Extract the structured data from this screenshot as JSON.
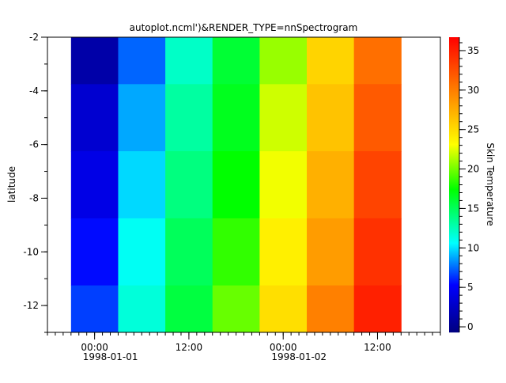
{
  "chart_data": {
    "type": "heatmap",
    "title": "autoplot.ncml')&RENDER_TYPE=nnSpectrogram",
    "xlabel": "",
    "ylabel": "latitude",
    "zlabel": "Skin Temperature",
    "x": [
      "1998-01-01T00:00",
      "1998-01-01T06:00",
      "1998-01-01T12:00",
      "1998-01-01T18:00",
      "1998-01-02T00:00",
      "1998-01-02T06:00",
      "1998-01-02T12:00"
    ],
    "y": [
      -2.5,
      -5,
      -7.5,
      -10,
      -12.5
    ],
    "z": [
      [
        1.2,
        3.1,
        4.1,
        5.5,
        6.6
      ],
      [
        7.4,
        8.8,
        9.8,
        10.9,
        11.6
      ],
      [
        12.1,
        13.1,
        14.0,
        15.0,
        15.7
      ],
      [
        16.0,
        16.6,
        17.4,
        18.5,
        19.7
      ],
      [
        20.8,
        22.0,
        22.8,
        23.9,
        24.8
      ],
      [
        25.4,
        26.3,
        27.3,
        28.4,
        29.9
      ],
      [
        30.8,
        31.9,
        33.1,
        34.1,
        35.0
      ]
    ],
    "xlim": [
      "1997-12-31T18:00",
      "1998-01-02T20:00"
    ],
    "ylim": [
      -13,
      -2
    ],
    "zlim": [
      -0.7,
      36.7
    ],
    "x_ticks": [
      {
        "time": "1998-01-01T00:00",
        "label": "00:00",
        "date": "1998-01-01"
      },
      {
        "time": "1998-01-01T12:00",
        "label": "12:00",
        "date": ""
      },
      {
        "time": "1998-01-02T00:00",
        "label": "00:00",
        "date": "1998-01-02"
      },
      {
        "time": "1998-01-02T12:00",
        "label": "12:00",
        "date": ""
      }
    ],
    "y_ticks": [
      "-2",
      "-4",
      "-6",
      "-8",
      "-10",
      "-12"
    ],
    "z_ticks": [
      "0",
      "5",
      "10",
      "15",
      "20",
      "25",
      "30",
      "35"
    ],
    "colormap": "jet",
    "colormap_stops": [
      {
        "v": -0.7,
        "c": "#000080"
      },
      {
        "v": 5.3,
        "c": "#0000ff"
      },
      {
        "v": 10.6,
        "c": "#00ffff"
      },
      {
        "v": 17.4,
        "c": "#00ff00"
      },
      {
        "v": 23.1,
        "c": "#ffff00"
      },
      {
        "v": 36.7,
        "c": "#ff0000"
      }
    ],
    "grid": false,
    "legend": "colorbar-right"
  }
}
